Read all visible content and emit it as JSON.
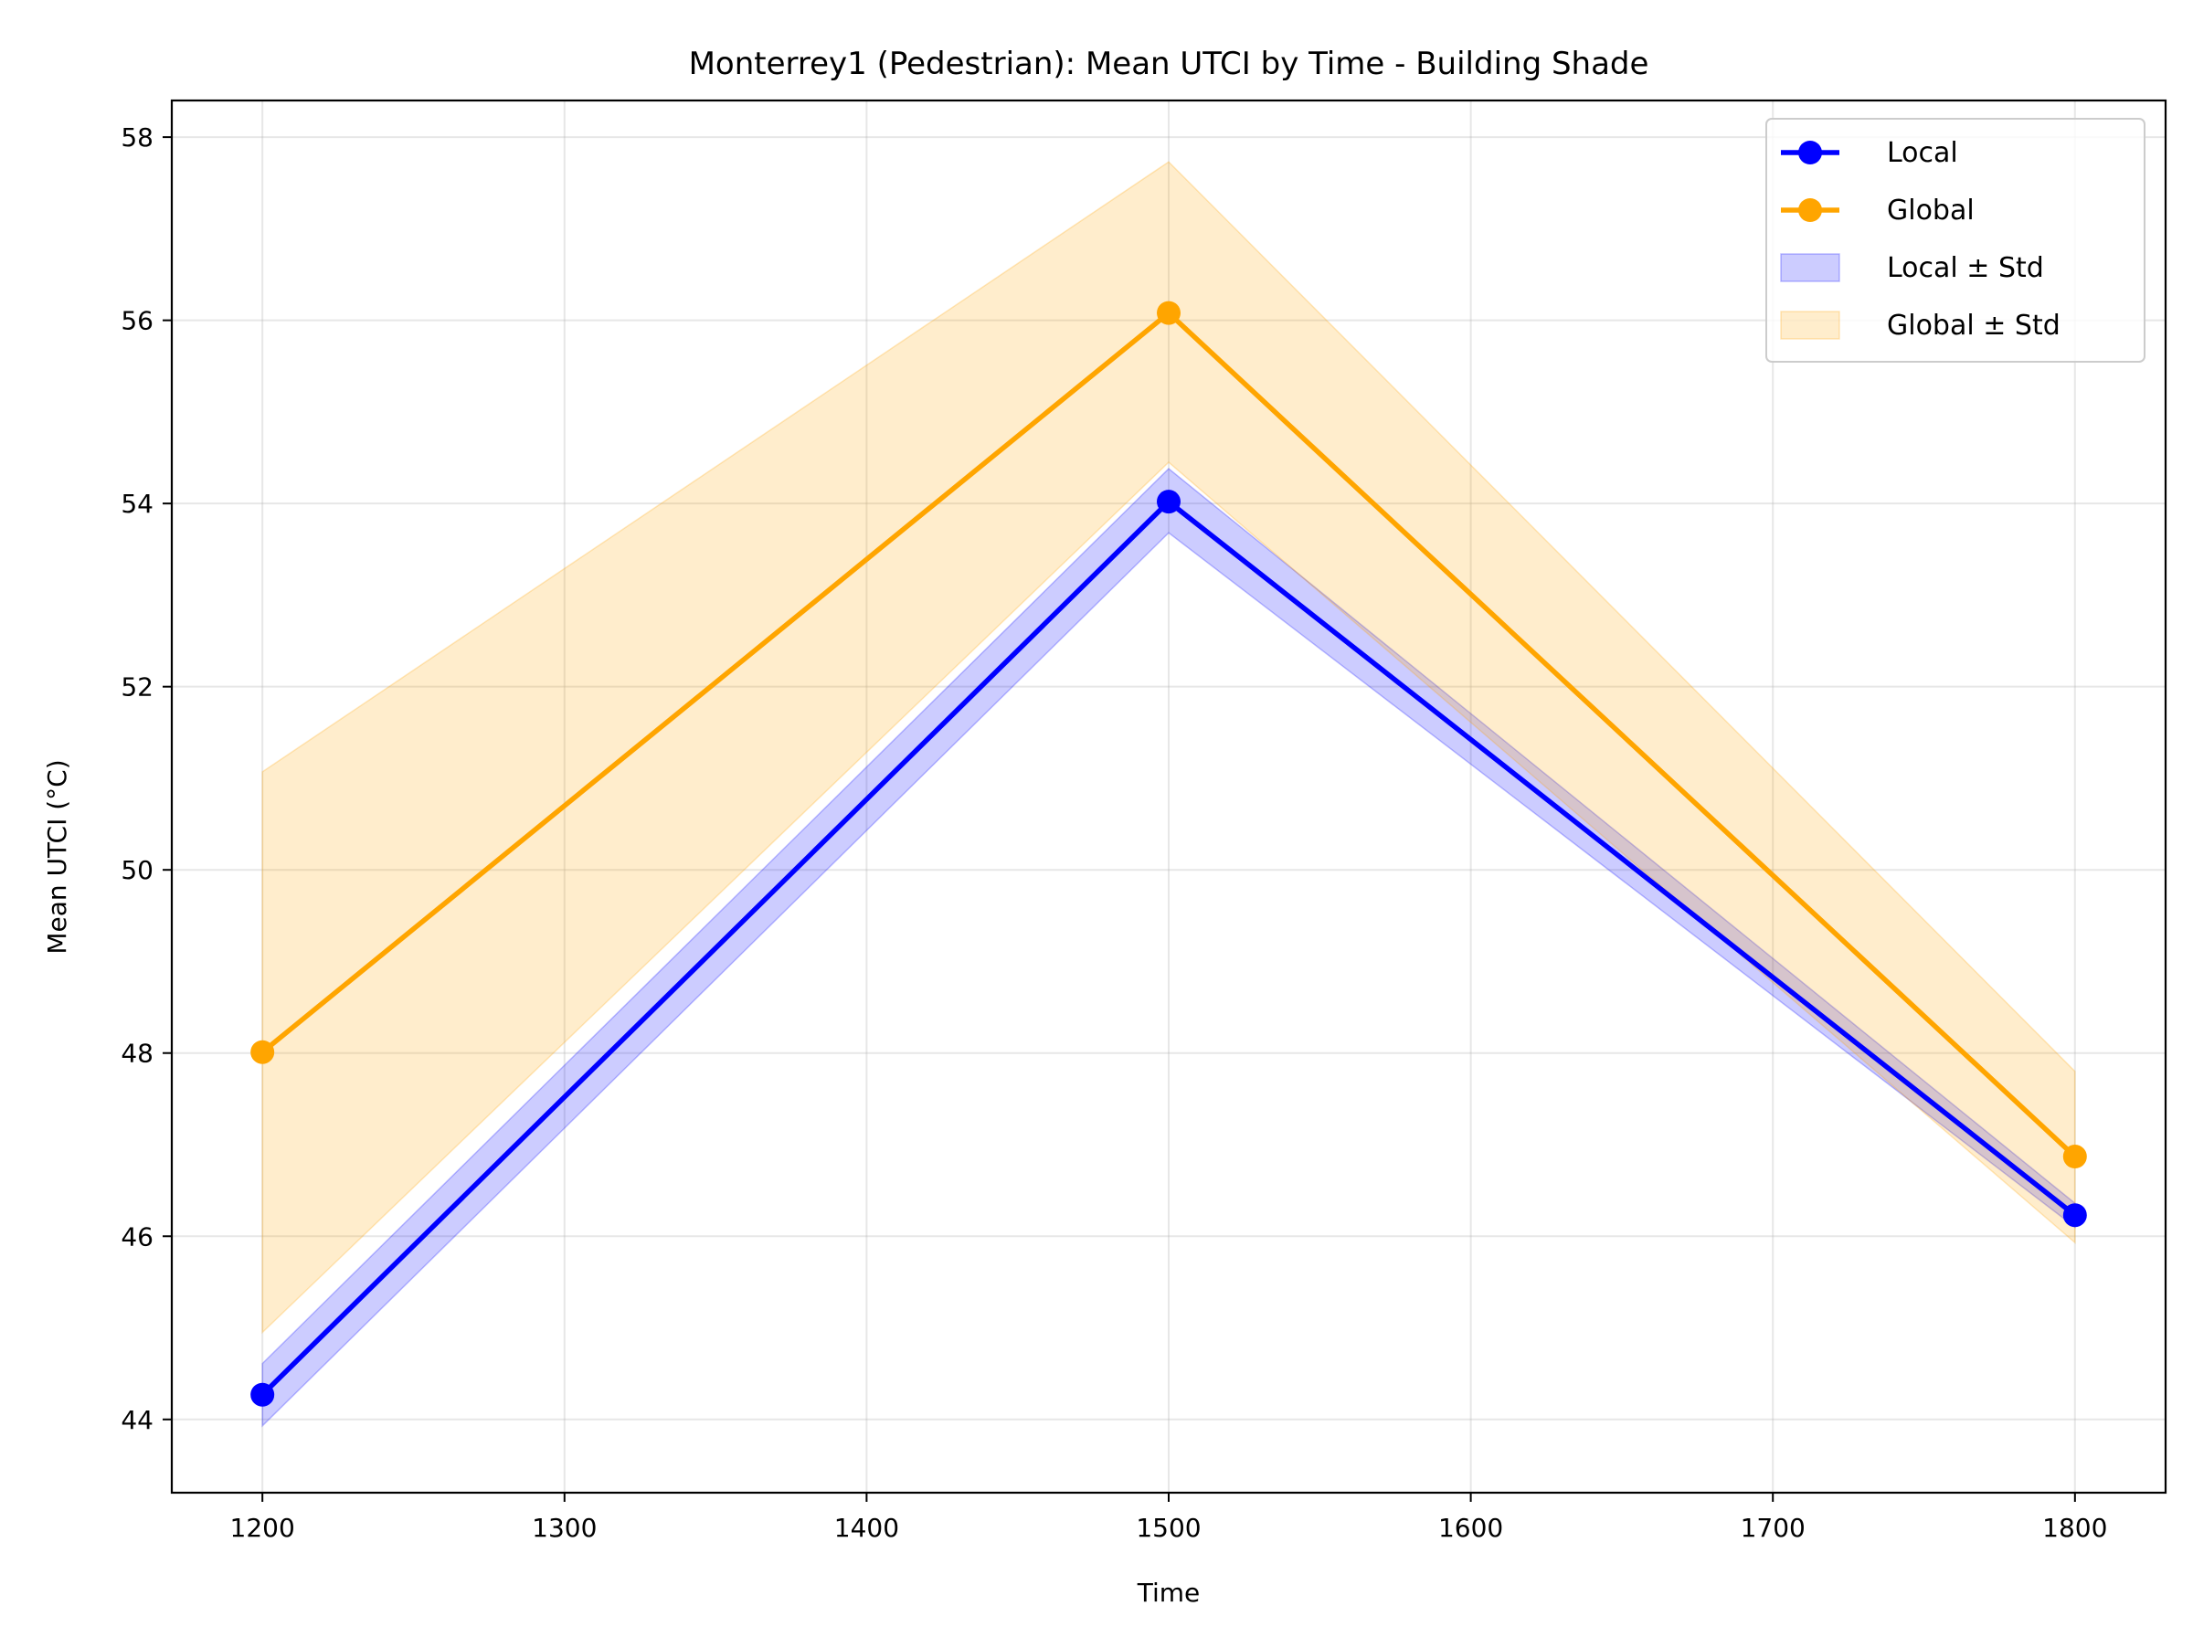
{
  "chart_data": {
    "type": "line",
    "title": "Monterrey1 (Pedestrian): Mean UTCI by Time - Building Shade",
    "xlabel": "Time",
    "ylabel": "Mean UTCI (°C)",
    "xlim": [
      1170,
      1830
    ],
    "ylim": [
      43.2,
      58.4
    ],
    "xticks": [
      1200,
      1300,
      1400,
      1500,
      1600,
      1700,
      1800
    ],
    "yticks": [
      44,
      46,
      48,
      50,
      52,
      54,
      56,
      58
    ],
    "grid": true,
    "legend_position": "top-right",
    "x": [
      1200,
      1500,
      1800
    ],
    "series": [
      {
        "name": "Local",
        "color": "#0000ff",
        "values": [
          44.27,
          54.02,
          46.23
        ],
        "band_name": "Local ± Std",
        "band_lower": [
          43.93,
          53.68,
          46.1
        ],
        "band_upper": [
          44.61,
          54.38,
          46.36
        ]
      },
      {
        "name": "Global",
        "color": "#ffa500",
        "values": [
          48.01,
          56.08,
          46.87
        ],
        "band_name": "Global ± Std",
        "band_lower": [
          44.95,
          54.45,
          45.93
        ],
        "band_upper": [
          51.07,
          57.73,
          47.8
        ]
      }
    ]
  }
}
